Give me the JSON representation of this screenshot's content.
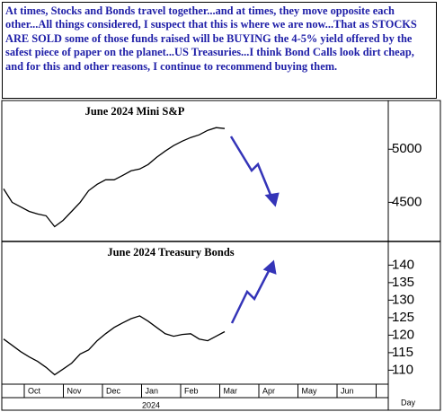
{
  "note": {
    "text": "At times, Stocks and Bonds travel together...and at times, they move opposite each other...All things considered, I suspect that this is where we are now...That as STOCKS ARE SOLD some of those funds raised will be BUYING the 4-5% yield offered by the safest piece of paper on the planet...US Treasuries...I think Bond Calls look dirt cheap, and for this and other reasons,  I continue to recommend buying them."
  },
  "x_axis": {
    "month_labels": [
      "Oct",
      "Nov",
      "Dec",
      "Jan",
      "Feb",
      "Mar",
      "Apr",
      "May",
      "Jun"
    ],
    "year": "2024",
    "label": "Day"
  },
  "chart_data": [
    {
      "type": "line",
      "title": "June 2024 Mini S&P",
      "color": "#000000",
      "values": [
        4627,
        4500,
        4458,
        4415,
        4390,
        4373,
        4271,
        4330,
        4415,
        4500,
        4610,
        4670,
        4712,
        4712,
        4754,
        4797,
        4814,
        4856,
        4924,
        4983,
        5034,
        5076,
        5110,
        5136,
        5178,
        5203,
        5195
      ],
      "ylim": [
        4140,
        5450
      ],
      "yticks": [
        4500,
        5000
      ]
    },
    {
      "type": "line",
      "title": "June 2024 Treasury Bonds",
      "color": "#000000",
      "values": [
        118.9,
        117.1,
        115.3,
        113.8,
        112.5,
        110.8,
        108.7,
        110.3,
        112.0,
        114.6,
        115.8,
        118.4,
        120.4,
        122.2,
        123.5,
        124.7,
        125.5,
        124.0,
        122.2,
        120.4,
        119.7,
        120.2,
        120.4,
        118.9,
        118.4,
        119.7,
        121.0
      ],
      "ylim": [
        106,
        146.5
      ],
      "yticks": [
        110,
        115,
        120,
        125,
        130,
        135,
        140
      ]
    }
  ]
}
